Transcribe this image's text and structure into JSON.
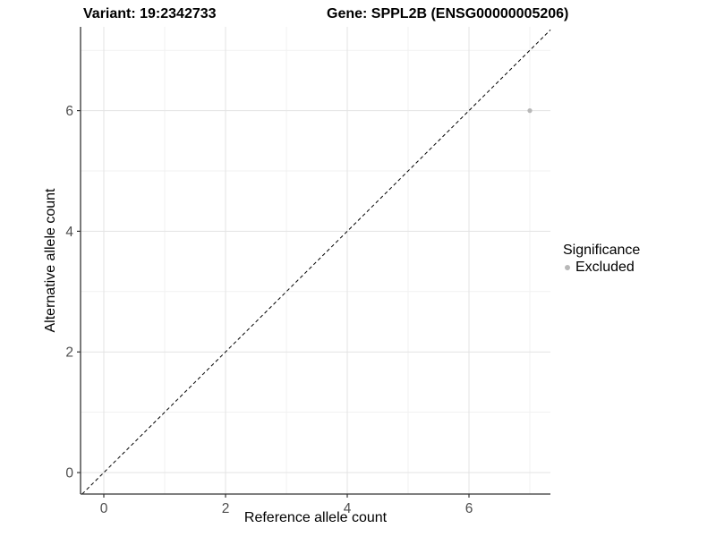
{
  "header": {
    "variant_title": "Variant: 19:2342733",
    "gene_title": "Gene: SPPL2B (ENSG00000005206)"
  },
  "chart_data": {
    "type": "scatter",
    "xlabel": "Reference allele count",
    "ylabel": "Alternative allele count",
    "xlim": [
      -0.38,
      7.34
    ],
    "ylim": [
      -0.36,
      7.39
    ],
    "x_ticks": [
      0,
      2,
      4,
      6
    ],
    "y_ticks": [
      0,
      2,
      4,
      6
    ],
    "x_minor_ticks": [
      1,
      3,
      5,
      7
    ],
    "y_minor_ticks": [
      1,
      3,
      5,
      7
    ],
    "grid": true,
    "reference_line": {
      "type": "identity",
      "slope": 1,
      "intercept": 0,
      "style": "dashed",
      "color": "#000000"
    },
    "series": [
      {
        "name": "Excluded",
        "color": "#b8b8b8",
        "points": [
          {
            "x": 7,
            "y": 6
          }
        ]
      }
    ],
    "legend": {
      "title": "Significance",
      "position": "right",
      "items": [
        {
          "label": "Excluded",
          "color": "#b8b8b8"
        }
      ]
    },
    "colors": {
      "background": "#ffffff",
      "grid_major": "#e3e3e3",
      "grid_minor": "#f1f1f1",
      "axis_line": "#333333",
      "tick_label": "#4d4d4d"
    }
  }
}
